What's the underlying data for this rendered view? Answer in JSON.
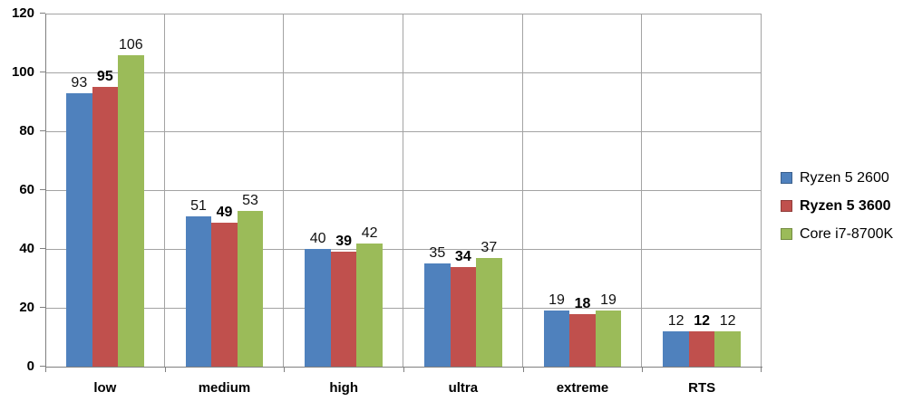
{
  "chart_data": {
    "type": "bar",
    "title": "",
    "xlabel": "",
    "ylabel": "",
    "categories": [
      "low",
      "medium",
      "high",
      "ultra",
      "extreme",
      "RTS"
    ],
    "series": [
      {
        "name": "Ryzen 5 2600",
        "color": "#4F81BD",
        "bold": false,
        "values": [
          93,
          51,
          40,
          35,
          19,
          12
        ]
      },
      {
        "name": "Ryzen 5 3600",
        "color": "#C0504D",
        "bold": true,
        "values": [
          95,
          49,
          39,
          34,
          18,
          12
        ]
      },
      {
        "name": "Core i7-8700K",
        "color": "#9BBB59",
        "bold": false,
        "values": [
          106,
          53,
          42,
          37,
          19,
          12
        ]
      }
    ],
    "ylim": [
      0,
      120
    ],
    "yticks": [
      0,
      20,
      40,
      60,
      80,
      100,
      120
    ],
    "grid": true,
    "legend_position": "right",
    "data_labels": "outside-end"
  },
  "colors": {
    "gridline": "#A3A3A3",
    "axis": "#808080",
    "background": "#FFFFFF",
    "label_text": "#000000"
  }
}
